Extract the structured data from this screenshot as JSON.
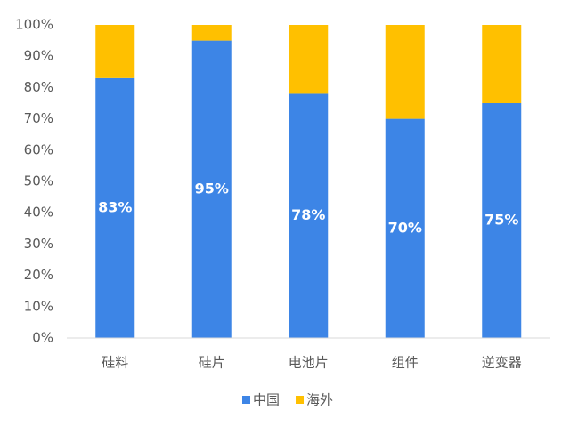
{
  "chart_data": {
    "type": "stacked_bar",
    "categories": [
      "硅料",
      "硅片",
      "电池片",
      "组件",
      "逆变器"
    ],
    "series": [
      {
        "name": "中国",
        "color": "#3d85e6",
        "values": [
          83,
          95,
          78,
          70,
          75
        ],
        "value_labels": [
          "83%",
          "95%",
          "78%",
          "70%",
          "75%"
        ]
      },
      {
        "name": "海外",
        "color": "#ffc000",
        "values": [
          17,
          5,
          22,
          30,
          25
        ]
      }
    ],
    "ylim": [
      0,
      100
    ],
    "yticks": [
      {
        "value": 0,
        "label": "0%"
      },
      {
        "value": 10,
        "label": "10%"
      },
      {
        "value": 20,
        "label": "20%"
      },
      {
        "value": 30,
        "label": "30%"
      },
      {
        "value": 40,
        "label": "40%"
      },
      {
        "value": 50,
        "label": "50%"
      },
      {
        "value": 60,
        "label": "60%"
      },
      {
        "value": 70,
        "label": "70%"
      },
      {
        "value": 80,
        "label": "80%"
      },
      {
        "value": 90,
        "label": "90%"
      },
      {
        "value": 100,
        "label": "100%"
      }
    ],
    "grid": false,
    "legend": "bottom"
  }
}
